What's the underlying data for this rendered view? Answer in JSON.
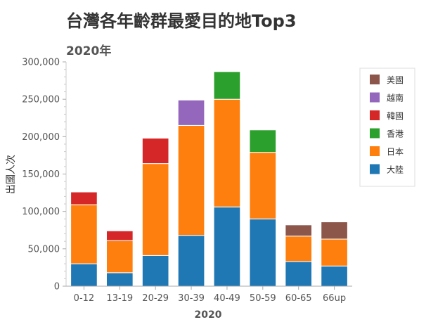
{
  "chart_data": {
    "type": "bar",
    "stacked": true,
    "title": "台灣各年齡群最愛目的地Top3",
    "subtitle": "2020年",
    "xlabel": "2020",
    "ylabel": "出國人次",
    "ylim": [
      0,
      300000
    ],
    "yticks": [
      "0",
      "50,000",
      "100,000",
      "150,000",
      "200,000",
      "250,000",
      "300,000"
    ],
    "categories": [
      "0-12",
      "13-19",
      "20-29",
      "30-39",
      "40-49",
      "50-59",
      "60-65",
      "66up"
    ],
    "series": [
      {
        "name": "大陸",
        "color": "#1f77b4",
        "values": [
          30000,
          18000,
          41000,
          68000,
          106000,
          90000,
          33000,
          27000
        ]
      },
      {
        "name": "日本",
        "color": "#ff7f0e",
        "values": [
          79000,
          43000,
          123000,
          147000,
          144000,
          89000,
          34000,
          36000
        ]
      },
      {
        "name": "香港",
        "color": "#2ca02c",
        "values": [
          0,
          0,
          0,
          0,
          37000,
          30000,
          0,
          0
        ]
      },
      {
        "name": "韓國",
        "color": "#d62728",
        "values": [
          17000,
          13000,
          34000,
          0,
          0,
          0,
          0,
          0
        ]
      },
      {
        "name": "越南",
        "color": "#9467bd",
        "values": [
          0,
          0,
          0,
          34000,
          0,
          0,
          0,
          0
        ]
      },
      {
        "name": "美國",
        "color": "#8c564b",
        "values": [
          0,
          0,
          0,
          0,
          0,
          0,
          15000,
          23000
        ]
      }
    ],
    "legend_order": [
      "美國",
      "越南",
      "韓國",
      "香港",
      "日本",
      "大陸"
    ],
    "legend_position": "top-right",
    "grid": false
  }
}
